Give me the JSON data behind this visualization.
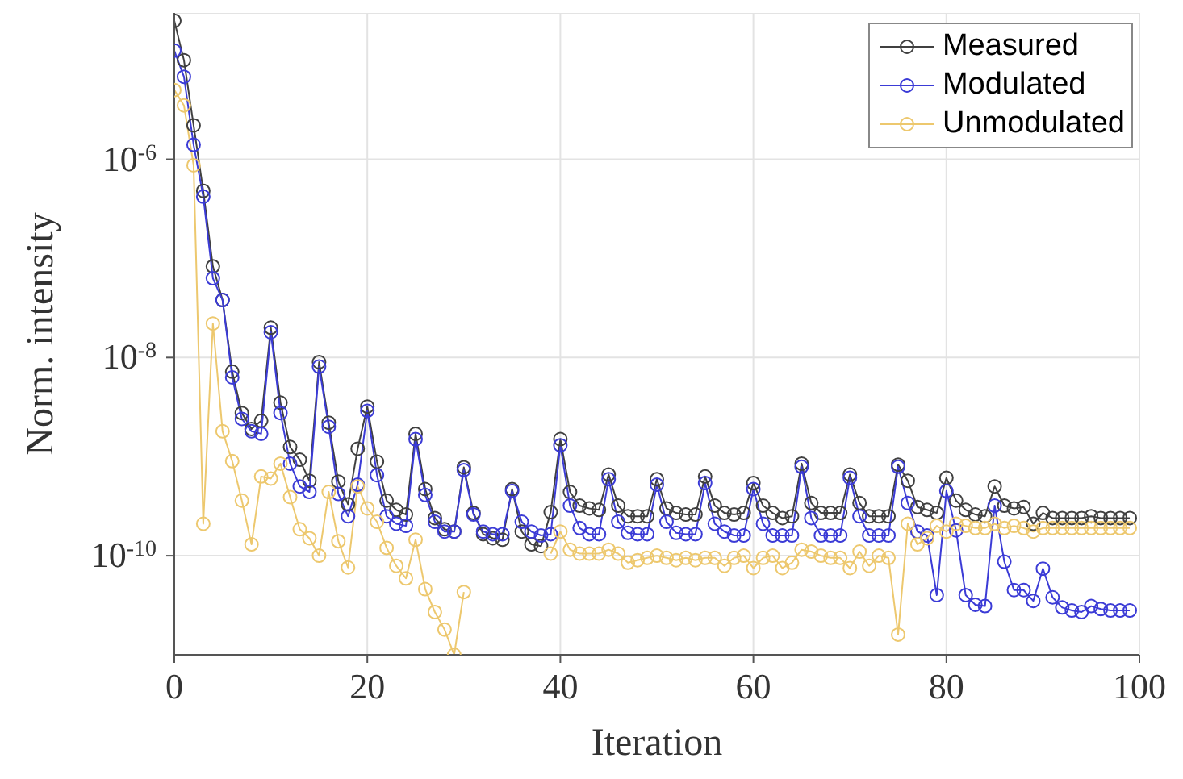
{
  "chart_data": {
    "type": "line",
    "xlabel": "Iteration",
    "ylabel": "Norm. intensity",
    "log": "y",
    "grid": true,
    "legend": "top right",
    "marker": "circle",
    "line_style": "solid",
    "x": [
      0,
      1,
      2,
      3,
      4,
      5,
      6,
      7,
      8,
      9,
      10,
      11,
      12,
      13,
      14,
      15,
      16,
      17,
      18,
      19,
      20,
      21,
      22,
      23,
      24,
      25,
      26,
      27,
      28,
      29,
      30,
      31,
      32,
      33,
      34,
      35,
      36,
      37,
      38,
      39,
      40,
      41,
      42,
      43,
      44,
      45,
      46,
      47,
      48,
      49,
      50,
      51,
      52,
      53,
      54,
      55,
      56,
      57,
      58,
      59,
      60,
      61,
      62,
      63,
      64,
      65,
      66,
      67,
      68,
      69,
      70,
      71,
      72,
      73,
      74,
      75,
      76,
      77,
      78,
      79,
      80,
      81,
      82,
      83,
      84,
      85,
      86,
      87,
      88,
      89,
      90,
      91,
      92,
      93,
      94,
      95,
      96,
      97,
      98,
      99
    ],
    "xlim": [
      0,
      100
    ],
    "xticks": [
      0,
      20,
      40,
      60,
      80,
      100
    ],
    "ylim": [
      1e-11,
      3e-05
    ],
    "yticks": [
      {
        "value": 1e-10,
        "label": "10$^{-10}$"
      },
      {
        "value": 1e-08,
        "label": "10$^{-8}$"
      },
      {
        "value": 1e-06,
        "label": "10$^{-6}$"
      }
    ],
    "series": [
      {
        "name": "Measured",
        "color": "#404040",
        "values": [
          2.5e-05,
          1e-05,
          2.2e-06,
          4.8e-07,
          8.3e-08,
          3.8e-08,
          7.2e-09,
          2.75e-09,
          1.9e-09,
          2.3e-09,
          2e-08,
          3.5e-09,
          1.25e-09,
          9.3e-10,
          5.7e-10,
          9e-09,
          2.2e-09,
          5.6e-10,
          3.3e-10,
          1.2e-09,
          3.2e-09,
          8.9e-10,
          3.6e-10,
          2.9e-10,
          2.6e-10,
          1.7e-09,
          4.7e-10,
          2.4e-10,
          1.85e-10,
          1.75e-10,
          7.8e-10,
          2.7e-10,
          1.65e-10,
          1.5e-10,
          1.45e-10,
          4.7e-10,
          1.75e-10,
          1.3e-10,
          1.25e-10,
          2.75e-10,
          1.5e-09,
          4.4e-10,
          3.2e-10,
          3e-10,
          2.9e-10,
          6.6e-10,
          3.2e-10,
          2.5e-10,
          2.5e-10,
          2.5e-10,
          5.9e-10,
          3e-10,
          2.7e-10,
          2.6e-10,
          2.6e-10,
          6.3e-10,
          3.2e-10,
          2.7e-10,
          2.6e-10,
          2.7e-10,
          5.4e-10,
          3.2e-10,
          2.7e-10,
          2.4e-10,
          2.5e-10,
          8.5e-10,
          3.4e-10,
          2.7e-10,
          2.7e-10,
          2.7e-10,
          6.6e-10,
          3.4e-10,
          2.5e-10,
          2.5e-10,
          2.5e-10,
          8.3e-10,
          5.7e-10,
          3.1e-10,
          2.9e-10,
          2.7e-10,
          6.1e-10,
          3.6e-10,
          2.9e-10,
          2.6e-10,
          2.5e-10,
          5e-10,
          3.2e-10,
          3e-10,
          3.1e-10,
          2.1e-10,
          2.7e-10,
          2.4e-10,
          2.4e-10,
          2.4e-10,
          2.4e-10,
          2.5e-10,
          2.4e-10,
          2.4e-10,
          2.4e-10,
          2.4e-10
        ]
      },
      {
        "name": "Modulated",
        "color": "#3b3bd6",
        "values": [
          1.25e-05,
          6.8e-06,
          1.4e-06,
          4.2e-07,
          6.3e-08,
          3.8e-08,
          6.3e-09,
          2.4e-09,
          1.8e-09,
          1.7e-09,
          1.8e-08,
          2.75e-09,
          8.5e-10,
          5e-10,
          4.4e-10,
          8.1e-09,
          2e-09,
          4.2e-10,
          2.5e-10,
          5.2e-10,
          2.9e-09,
          6.5e-10,
          2.5e-10,
          2.1e-10,
          2e-10,
          1.5e-09,
          4.1e-10,
          2.2e-10,
          1.75e-10,
          1.75e-10,
          7.3e-10,
          2.6e-10,
          1.75e-10,
          1.65e-10,
          1.65e-10,
          4.5e-10,
          2.2e-10,
          1.75e-10,
          1.6e-10,
          1.65e-10,
          1.3e-09,
          3.2e-10,
          1.9e-10,
          1.65e-10,
          1.65e-10,
          5.9e-10,
          2.2e-10,
          1.7e-10,
          1.65e-10,
          1.65e-10,
          5.2e-10,
          2.2e-10,
          1.7e-10,
          1.65e-10,
          1.65e-10,
          5.4e-10,
          2.1e-10,
          1.75e-10,
          1.6e-10,
          1.6e-10,
          4.7e-10,
          2.1e-10,
          1.6e-10,
          1.6e-10,
          1.6e-10,
          7.9e-10,
          2.4e-10,
          1.6e-10,
          1.6e-10,
          1.6e-10,
          6.1e-10,
          2.5e-10,
          1.6e-10,
          1.6e-10,
          1.6e-10,
          7.9e-10,
          3.4e-10,
          1.75e-10,
          1.6e-10,
          4e-11,
          4.5e-10,
          1.8e-10,
          4e-11,
          3.2e-11,
          3.1e-11,
          3.2e-10,
          8.7e-11,
          4.5e-11,
          4.5e-11,
          3.5e-11,
          7.4e-11,
          3.8e-11,
          3e-11,
          2.8e-11,
          2.7e-11,
          3.1e-11,
          2.9e-11,
          2.8e-11,
          2.8e-11,
          2.8e-11
        ]
      },
      {
        "name": "Unmodulated",
        "color": "#edc86e",
        "values": [
          5e-06,
          3.5e-06,
          8.7e-07,
          2.1e-10,
          2.2e-08,
          1.8e-09,
          9e-10,
          3.6e-10,
          1.3e-10,
          6.3e-10,
          6e-10,
          8.5e-10,
          3.9e-10,
          1.85e-10,
          1.5e-10,
          1e-10,
          4.4e-10,
          1.4e-10,
          7.6e-11,
          5e-10,
          3e-10,
          2.2e-10,
          1.2e-10,
          7.9e-11,
          5.9e-11,
          1.45e-10,
          4.6e-11,
          2.7e-11,
          1.8e-11,
          1e-11,
          4.3e-11,
          null,
          null,
          null,
          null,
          null,
          null,
          null,
          null,
          1.05e-10,
          1.75e-10,
          1.15e-10,
          1.05e-10,
          1.05e-10,
          1.05e-10,
          1.15e-10,
          1.05e-10,
          8.5e-11,
          9e-11,
          9.5e-11,
          1e-10,
          9.5e-11,
          9e-11,
          9.5e-11,
          9e-11,
          9.5e-11,
          9.5e-11,
          7.9e-11,
          9.5e-11,
          1e-10,
          7.5e-11,
          9.5e-11,
          1e-10,
          7.5e-11,
          8.5e-11,
          1.15e-10,
          1.1e-10,
          1e-10,
          9.5e-11,
          9.5e-11,
          7.5e-11,
          1.1e-10,
          7.9e-11,
          1e-10,
          9.5e-11,
          1.6e-11,
          2.1e-10,
          1.3e-10,
          1.5e-10,
          2e-10,
          1.75e-10,
          2.1e-10,
          2e-10,
          1.9e-10,
          1.9e-10,
          2.1e-10,
          1.9e-10,
          2e-10,
          1.9e-10,
          1.75e-10,
          1.9e-10,
          1.9e-10,
          1.9e-10,
          1.9e-10,
          1.9e-10,
          1.9e-10,
          1.9e-10,
          1.9e-10,
          1.9e-10,
          1.9e-10
        ]
      }
    ]
  }
}
